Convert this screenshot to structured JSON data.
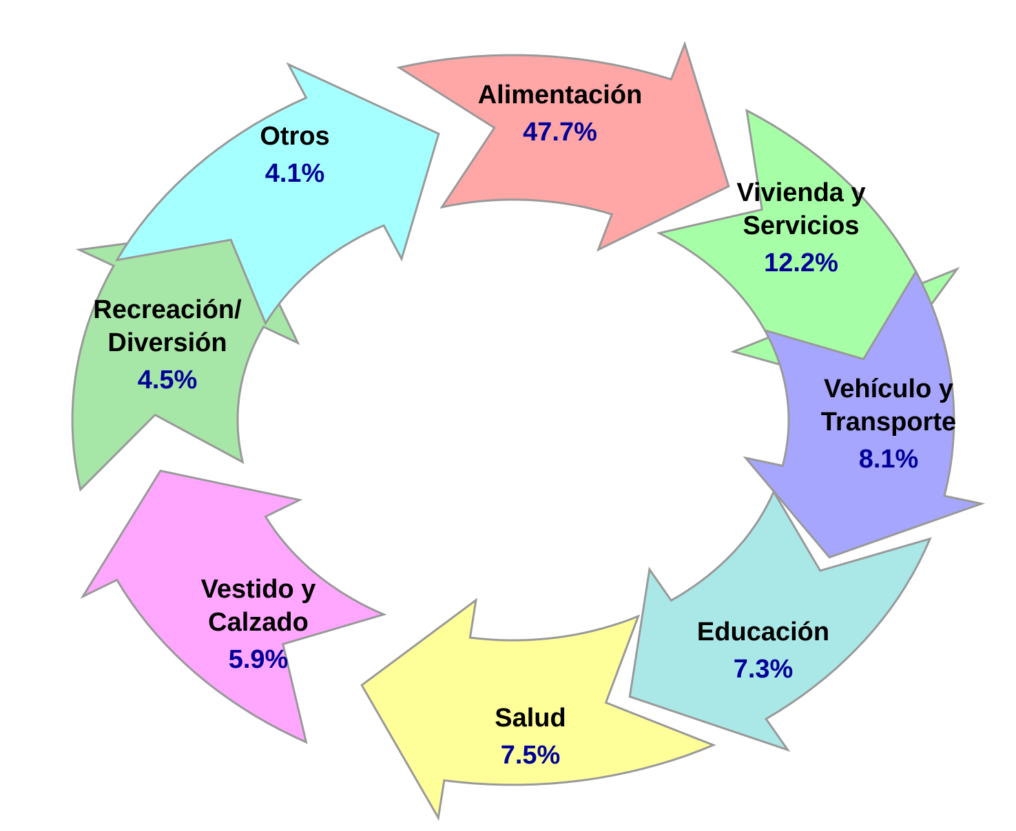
{
  "segments": [
    {
      "label": [
        "Alimentación"
      ],
      "value": "47.7%"
    },
    {
      "label": [
        "Vivienda y",
        "Servicios"
      ],
      "value": "12.2%"
    },
    {
      "label": [
        "Vehículo y",
        "Transporte"
      ],
      "value": "8.1%"
    },
    {
      "label": [
        "Educación"
      ],
      "value": "7.3%"
    },
    {
      "label": [
        "Salud"
      ],
      "value": "7.5%"
    },
    {
      "label": [
        "Vestido y",
        "Calzado"
      ],
      "value": "5.9%"
    },
    {
      "label": [
        "Recreación/",
        "Diversión"
      ],
      "value": "4.5%"
    },
    {
      "label": [
        "Otros"
      ],
      "value": "4.1%"
    }
  ]
}
